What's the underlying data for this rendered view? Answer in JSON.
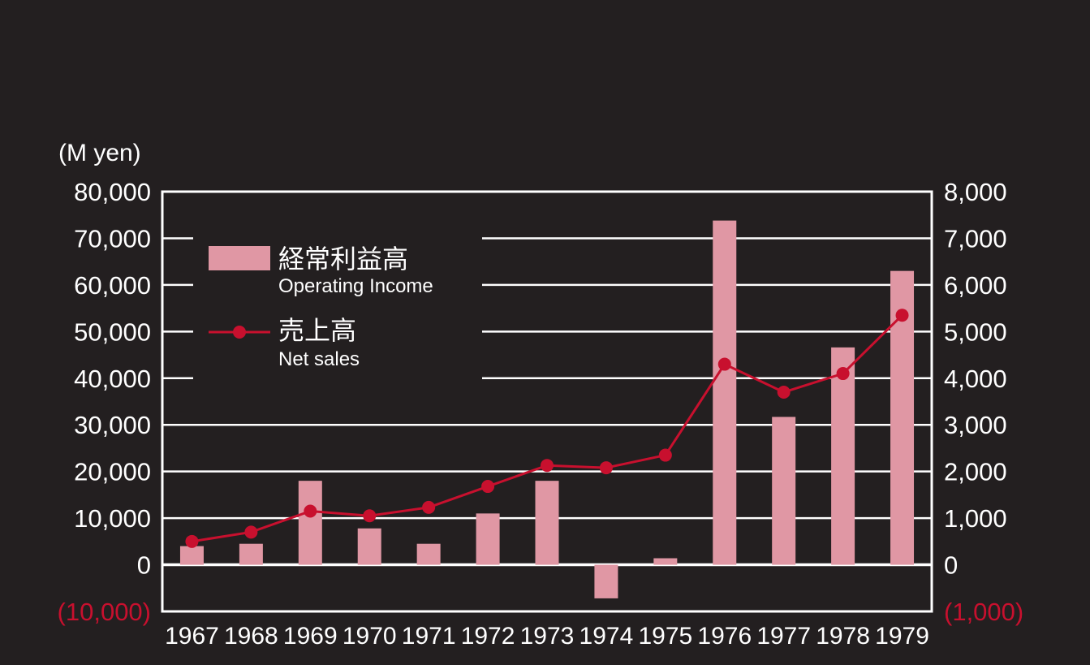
{
  "chart_data": {
    "type": "bar",
    "unit_label": "(M yen)",
    "categories": [
      "1967",
      "1968",
      "1969",
      "1970",
      "1971",
      "1972",
      "1973",
      "1974",
      "1975",
      "1976",
      "1977",
      "1978",
      "1979"
    ],
    "left_axis": {
      "range": [
        -10000,
        80000
      ],
      "ticks": [
        "(10,000)",
        "0",
        "10,000",
        "20,000",
        "30,000",
        "40,000",
        "50,000",
        "60,000",
        "70,000",
        "80,000"
      ]
    },
    "right_axis": {
      "range": [
        -1000,
        8000
      ],
      "ticks": [
        "(1,000)",
        "0",
        "1,000",
        "2,000",
        "3,000",
        "4,000",
        "5,000",
        "6,000",
        "7,000",
        "8,000"
      ]
    },
    "grid": true,
    "legend_position": "top-left",
    "series": [
      {
        "name": "経常利益高",
        "name_en": "Operating Income",
        "type": "bar",
        "axis": "right",
        "color": "#e097a4",
        "values": [
          400,
          450,
          1800,
          780,
          450,
          1100,
          1800,
          -720,
          140,
          7380,
          3170,
          4660,
          6300
        ]
      },
      {
        "name": "売上高",
        "name_en": "Net sales",
        "type": "line",
        "axis": "left",
        "color": "#c8102e",
        "values": [
          5000,
          7000,
          11500,
          10500,
          12300,
          16800,
          21300,
          20800,
          23500,
          43000,
          37000,
          41000,
          53500
        ]
      }
    ]
  }
}
